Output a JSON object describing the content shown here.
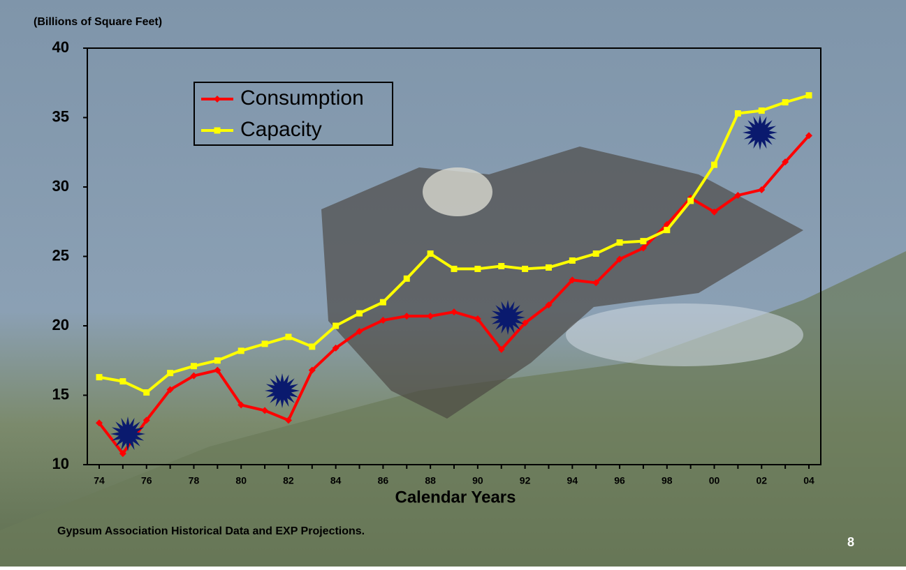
{
  "chart_data": {
    "type": "line",
    "y_label": "(Billions of Square Feet)",
    "x_label": "Calendar Years",
    "source": "Gypsum Association Historical Data and EXP Projections.",
    "categories": [
      "74",
      null,
      "76",
      null,
      "78",
      null,
      "80",
      null,
      "82",
      null,
      "84",
      null,
      "86",
      null,
      "88",
      null,
      "90",
      null,
      "92",
      null,
      "94",
      null,
      "96",
      null,
      "98",
      null,
      "00",
      null,
      "02",
      null,
      "04"
    ],
    "series": [
      {
        "name": "Consumption",
        "color": "#ff0000",
        "marker": "diamond",
        "values": [
          13.0,
          10.8,
          13.2,
          15.4,
          16.4,
          16.8,
          14.3,
          13.9,
          13.2,
          16.8,
          18.4,
          19.6,
          20.4,
          20.7,
          20.7,
          21.0,
          20.5,
          18.3,
          20.2,
          21.5,
          23.3,
          23.1,
          24.8,
          25.6,
          27.3,
          29.2,
          28.2,
          29.4,
          29.8,
          31.8,
          33.7
        ]
      },
      {
        "name": "Capacity",
        "color": "#ffff00",
        "marker": "square",
        "values": [
          16.3,
          16.0,
          15.2,
          16.6,
          17.1,
          17.5,
          18.2,
          18.7,
          19.2,
          18.5,
          20.0,
          20.9,
          21.7,
          23.4,
          25.2,
          24.1,
          24.1,
          24.3,
          24.1,
          24.2,
          24.7,
          25.2,
          26.0,
          26.1,
          26.9,
          29.0,
          31.6,
          35.3,
          35.5,
          36.1,
          36.6
        ]
      }
    ],
    "ylim": [
      10,
      40
    ],
    "yticks": [
      10,
      15,
      20,
      25,
      30,
      35,
      40
    ],
    "grid": false,
    "legend": "top-left"
  },
  "slide_number": "8"
}
